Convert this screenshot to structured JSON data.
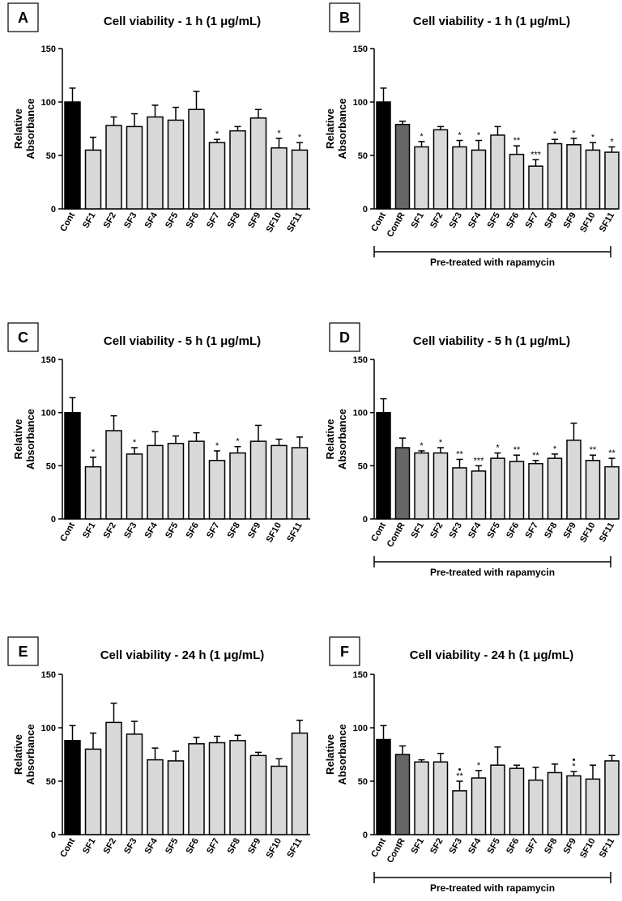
{
  "colors": {
    "cont": "#000000",
    "contR": "#666666",
    "sf": "#d9d9d9",
    "axis": "#000000"
  },
  "chart_data": [
    {
      "letter": "A",
      "type": "bar",
      "title": "Cell viability - 1 h (1 μg/mL)",
      "ylabel": [
        "Relative",
        "Absorbance"
      ],
      "ylim": [
        0,
        150
      ],
      "yticks": [
        "0",
        "50",
        "100",
        "150"
      ],
      "categories": [
        "Cont",
        "SF1",
        "SF2",
        "SF3",
        "SF4",
        "SF5",
        "SF6",
        "SF7",
        "SF8",
        "SF9",
        "SF10",
        "SF11"
      ],
      "values": [
        100,
        55,
        78,
        77,
        86,
        83,
        93,
        62,
        73,
        85,
        57,
        55
      ],
      "errors": [
        13,
        12,
        8,
        12,
        11,
        12,
        17,
        3,
        4,
        8,
        9,
        7
      ],
      "significance": [
        "",
        "",
        "",
        "",
        "",
        "",
        "",
        "*",
        "",
        "",
        "*",
        "*"
      ],
      "kinds": [
        "cont",
        "sf",
        "sf",
        "sf",
        "sf",
        "sf",
        "sf",
        "sf",
        "sf",
        "sf",
        "sf",
        "sf"
      ],
      "bracket_label": ""
    },
    {
      "letter": "B",
      "type": "bar",
      "title": "Cell viability - 1 h (1 μg/mL)",
      "ylabel": [
        "Relative",
        "Absorbance"
      ],
      "ylim": [
        0,
        150
      ],
      "yticks": [
        "0",
        "50",
        "100",
        "150"
      ],
      "categories": [
        "Cont",
        "ContR",
        "SF1",
        "SF2",
        "SF3",
        "SF4",
        "SF5",
        "SF6",
        "SF7",
        "SF8",
        "SF9",
        "SF10",
        "SF11"
      ],
      "values": [
        100,
        79,
        58,
        74,
        58,
        55,
        69,
        51,
        40,
        61,
        60,
        55,
        53
      ],
      "errors": [
        13,
        3,
        5,
        3,
        6,
        9,
        8,
        8,
        6,
        4,
        6,
        7,
        5
      ],
      "significance": [
        "",
        "",
        "*",
        "",
        "*",
        "*",
        "",
        "**",
        "***",
        "*",
        "*",
        "*",
        "*"
      ],
      "kinds": [
        "cont",
        "contR",
        "sf",
        "sf",
        "sf",
        "sf",
        "sf",
        "sf",
        "sf",
        "sf",
        "sf",
        "sf",
        "sf"
      ],
      "bracket_label": "Pre-treated with rapamycin"
    },
    {
      "letter": "C",
      "type": "bar",
      "title": "Cell viability - 5 h (1 μg/mL)",
      "ylabel": [
        "Relative",
        "Absorbance"
      ],
      "ylim": [
        0,
        150
      ],
      "yticks": [
        "0",
        "50",
        "100",
        "150"
      ],
      "categories": [
        "Cont",
        "SF1",
        "SF2",
        "SF3",
        "SF4",
        "SF5",
        "SF6",
        "SF7",
        "SF8",
        "SF9",
        "SF10",
        "SF11"
      ],
      "values": [
        100,
        49,
        83,
        61,
        69,
        71,
        73,
        55,
        62,
        73,
        69,
        67
      ],
      "errors": [
        14,
        9,
        14,
        6,
        13,
        7,
        8,
        9,
        6,
        15,
        6,
        10
      ],
      "significance": [
        "",
        "*",
        "",
        "*",
        "",
        "",
        "",
        "*",
        "*",
        "",
        "",
        ""
      ],
      "kinds": [
        "cont",
        "sf",
        "sf",
        "sf",
        "sf",
        "sf",
        "sf",
        "sf",
        "sf",
        "sf",
        "sf",
        "sf"
      ],
      "bracket_label": ""
    },
    {
      "letter": "D",
      "type": "bar",
      "title": "Cell viability - 5 h (1 μg/mL)",
      "ylabel": [
        "Relative",
        "Absorbance"
      ],
      "ylim": [
        0,
        150
      ],
      "yticks": [
        "0",
        "50",
        "100",
        "150"
      ],
      "categories": [
        "Cont",
        "ContR",
        "SF1",
        "SF2",
        "SF3",
        "SF4",
        "SF5",
        "SF6",
        "SF7",
        "SF8",
        "SF9",
        "SF10",
        "SF11"
      ],
      "values": [
        100,
        67,
        62,
        62,
        48,
        45,
        57,
        54,
        52,
        57,
        74,
        55,
        49
      ],
      "errors": [
        13,
        9,
        2,
        5,
        8,
        5,
        5,
        6,
        3,
        4,
        16,
        5,
        8
      ],
      "significance": [
        "",
        "",
        "*",
        "*",
        "**",
        "***",
        "*",
        "**",
        "**",
        "*",
        "",
        "**",
        "**"
      ],
      "kinds": [
        "cont",
        "contR",
        "sf",
        "sf",
        "sf",
        "sf",
        "sf",
        "sf",
        "sf",
        "sf",
        "sf",
        "sf",
        "sf"
      ],
      "bracket_label": "Pre-treated with rapamycin"
    },
    {
      "letter": "E",
      "type": "bar",
      "title": "Cell viability - 24 h (1 μg/mL)",
      "ylabel": [
        "Relative",
        "Absorbance"
      ],
      "ylim": [
        0,
        150
      ],
      "yticks": [
        "0",
        "50",
        "100",
        "150"
      ],
      "categories": [
        "Cont",
        "SF1",
        "SF2",
        "SF3",
        "SF4",
        "SF5",
        "SF6",
        "SF7",
        "SF8",
        "SF9",
        "SF10",
        "SF11"
      ],
      "values": [
        88,
        80,
        105,
        94,
        70,
        69,
        85,
        86,
        88,
        74,
        64,
        95
      ],
      "errors": [
        14,
        15,
        18,
        12,
        11,
        9,
        6,
        6,
        5,
        3,
        7,
        12
      ],
      "significance": [
        "",
        "",
        "",
        "",
        "",
        "",
        "",
        "",
        "",
        "",
        "",
        ""
      ],
      "kinds": [
        "cont",
        "sf",
        "sf",
        "sf",
        "sf",
        "sf",
        "sf",
        "sf",
        "sf",
        "sf",
        "sf",
        "sf"
      ],
      "bracket_label": ""
    },
    {
      "letter": "F",
      "type": "bar",
      "title": "Cell viability - 24 h (1 μg/mL)",
      "ylabel": [
        "Relative",
        "Absorbance"
      ],
      "ylim": [
        0,
        150
      ],
      "yticks": [
        "0",
        "50",
        "100",
        "150"
      ],
      "categories": [
        "Cont",
        "ContR",
        "SF1",
        "SF2",
        "SF3",
        "SF4",
        "SF5",
        "SF6",
        "SF7",
        "SF8",
        "SF9",
        "SF10",
        "SF11"
      ],
      "values": [
        89,
        75,
        68,
        68,
        41,
        53,
        65,
        62,
        51,
        58,
        55,
        52,
        69
      ],
      "errors": [
        13,
        8,
        2,
        8,
        9,
        7,
        17,
        3,
        12,
        8,
        4,
        13,
        5
      ],
      "significance": [
        "",
        "",
        "",
        "",
        "**",
        "*",
        "",
        "",
        "",
        "",
        "*",
        "",
        ""
      ],
      "markers": [
        "",
        "",
        "",
        "",
        "•",
        "",
        "",
        "",
        "",
        "",
        "•",
        "",
        ""
      ],
      "kinds": [
        "cont",
        "contR",
        "sf",
        "sf",
        "sf",
        "sf",
        "sf",
        "sf",
        "sf",
        "sf",
        "sf",
        "sf",
        "sf"
      ],
      "bracket_label": "Pre-treated with rapamycin"
    }
  ]
}
